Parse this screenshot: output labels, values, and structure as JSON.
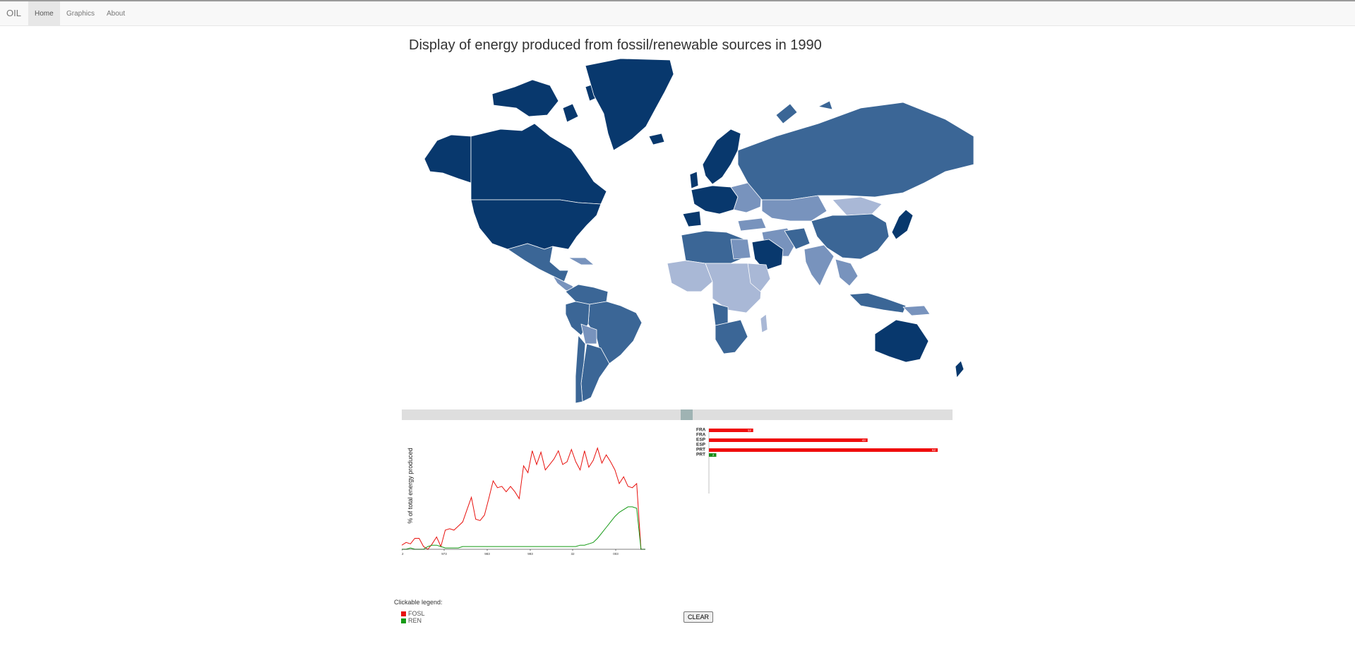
{
  "navbar": {
    "brand": "OIL",
    "items": [
      {
        "label": "Home",
        "active": true
      },
      {
        "label": "Graphics",
        "active": false
      },
      {
        "label": "About",
        "active": false
      }
    ]
  },
  "title": "Display of energy produced from fossil/renewable sources in 1990",
  "map": {
    "colors": {
      "darkest": "#08386d",
      "dark": "#3b6696",
      "medium": "#7893bd",
      "light": "#a9b8d6",
      "ocean": "#ffffff"
    }
  },
  "year_slider": {
    "value": 1990
  },
  "chart_data": [
    {
      "type": "line",
      "title": "",
      "ylabel": "% of total energy produced",
      "xlabel": "",
      "x_tick_labels": [
        "32",
        "973",
        "983",
        "993",
        "32",
        "003"
      ],
      "series": [
        {
          "name": "FOSL",
          "color": "#e8120e",
          "values": [
            3,
            5,
            4,
            8,
            8,
            2,
            0,
            4,
            9,
            2,
            14,
            15,
            14,
            17,
            20,
            29,
            38,
            22,
            21,
            25,
            37,
            50,
            45,
            46,
            42,
            46,
            42,
            37,
            61,
            56,
            72,
            62,
            71,
            58,
            62,
            66,
            72,
            62,
            64,
            73,
            64,
            58,
            72,
            60,
            65,
            74,
            63,
            69,
            64,
            58,
            48,
            53,
            46,
            45,
            48,
            0,
            0
          ]
        },
        {
          "name": "REN",
          "color": "#169a16",
          "values": [
            0,
            0,
            1,
            0,
            0,
            0,
            2,
            3,
            3,
            2,
            1,
            1,
            1,
            1,
            2,
            2,
            2,
            2,
            2,
            2,
            2,
            2,
            2,
            2,
            2,
            2,
            2,
            2,
            2,
            2,
            2,
            2,
            2,
            2,
            2,
            2,
            2,
            2,
            2,
            2,
            2,
            3,
            3,
            4,
            5,
            8,
            12,
            16,
            20,
            24,
            27,
            29,
            31,
            31,
            30,
            0,
            0
          ]
        }
      ]
    },
    {
      "type": "bar",
      "orientation": "horizontal",
      "categories": [
        "FRA",
        "FRA",
        "ESP",
        "ESP",
        "PRT",
        "PRT"
      ],
      "values": [
        12,
        0,
        43,
        0,
        62,
        2
      ],
      "bar_colors": [
        "#ef0c0c",
        "#ef0c0c",
        "#ef0c0c",
        "#ef0c0c",
        "#ef0c0c",
        "#1a8d1a"
      ],
      "value_labels": [
        "12",
        "",
        "43",
        "",
        "62",
        "2"
      ],
      "xlim": [
        0,
        62
      ]
    }
  ],
  "legend": {
    "title": "Clickable legend:",
    "items": [
      {
        "label": "FOSL",
        "color": "#e8120e"
      },
      {
        "label": "REN",
        "color": "#169a16"
      }
    ]
  },
  "clear_label": "CLEAR"
}
